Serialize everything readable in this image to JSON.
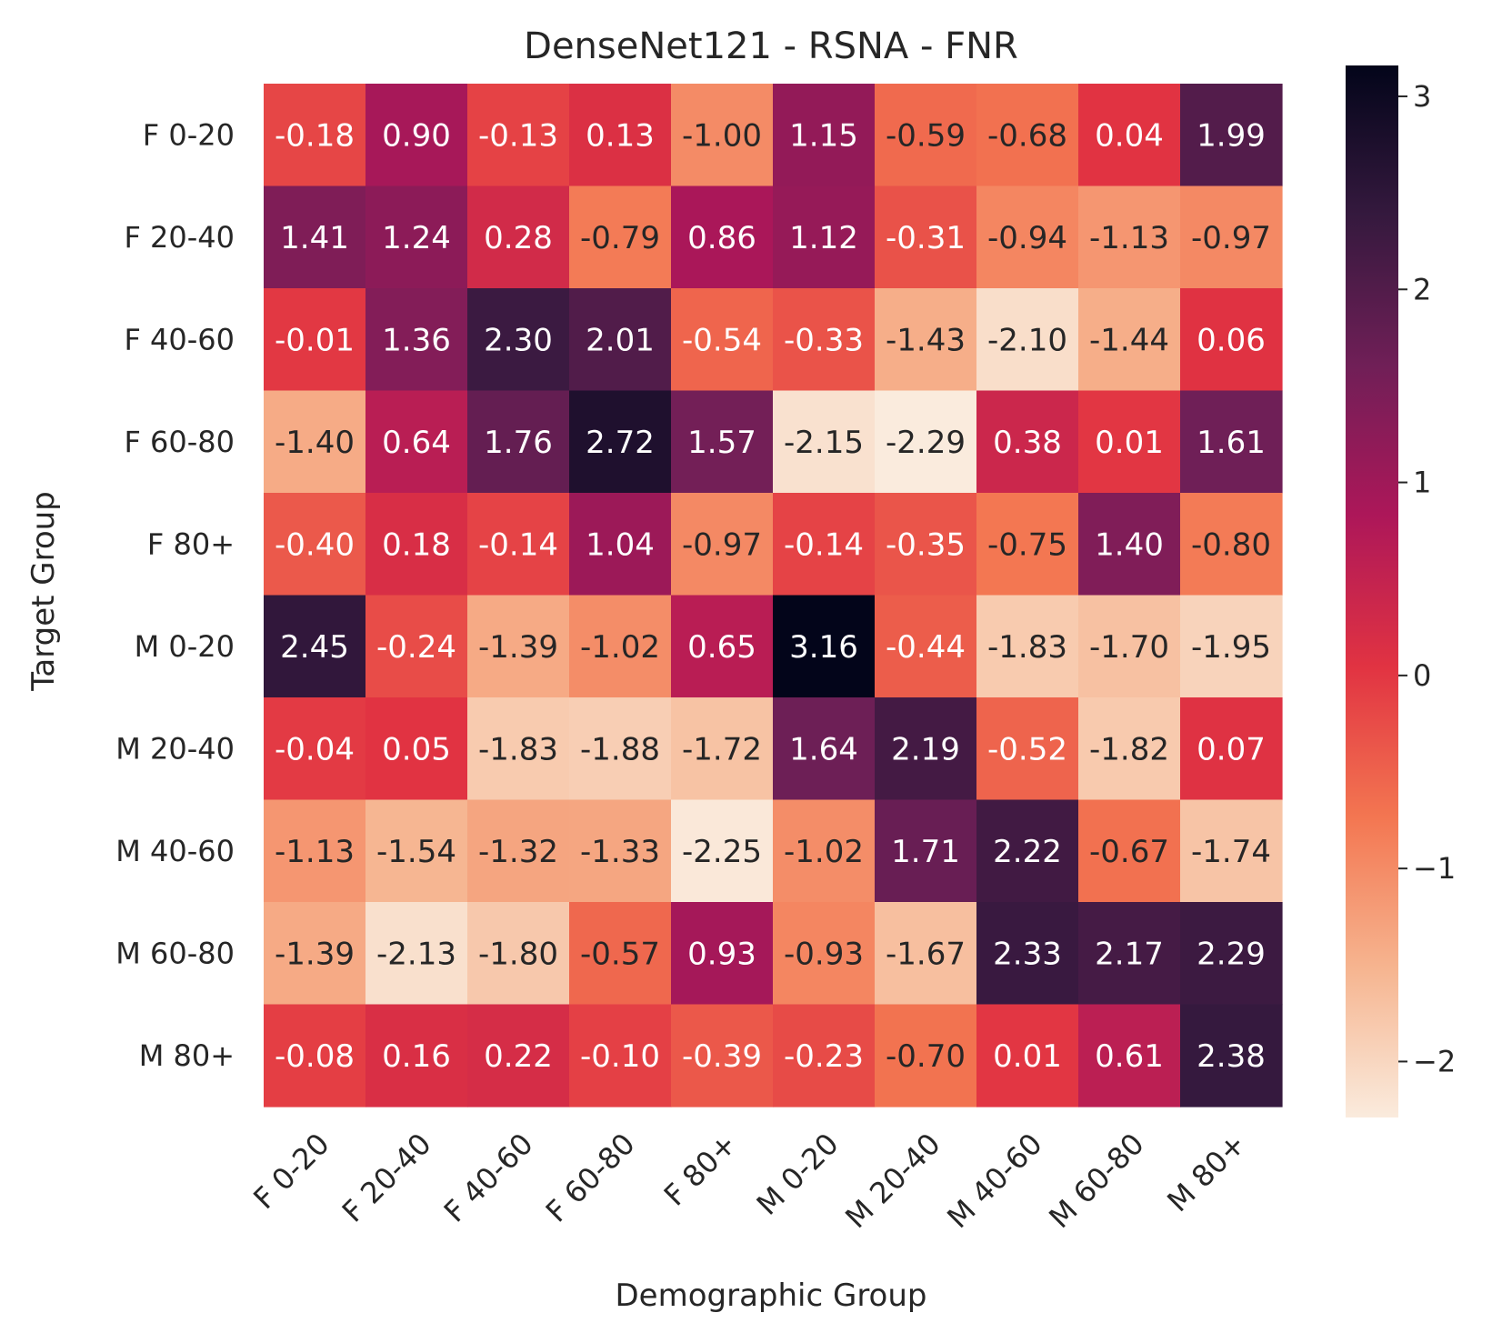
{
  "chart_data": {
    "type": "heatmap",
    "title": "DenseNet121 - RSNA - FNR",
    "xlabel": "Demographic Group",
    "ylabel": "Target Group",
    "x_categories": [
      "F 0-20",
      "F 20-40",
      "F 40-60",
      "F 60-80",
      "F 80+",
      "M 0-20",
      "M 20-40",
      "M 40-60",
      "M 60-80",
      "M 80+"
    ],
    "y_categories": [
      "F 0-20",
      "F 20-40",
      "F 40-60",
      "F 60-80",
      "F 80+",
      "M 0-20",
      "M 20-40",
      "M 40-60",
      "M 60-80",
      "M 80+"
    ],
    "values": [
      [
        -0.18,
        0.9,
        -0.13,
        0.13,
        -1.0,
        1.15,
        -0.59,
        -0.68,
        0.04,
        1.99
      ],
      [
        1.41,
        1.24,
        0.28,
        -0.79,
        0.86,
        1.12,
        -0.31,
        -0.94,
        -1.13,
        -0.97
      ],
      [
        -0.01,
        1.36,
        2.3,
        2.01,
        -0.54,
        -0.33,
        -1.43,
        -2.1,
        -1.44,
        0.06
      ],
      [
        -1.4,
        0.64,
        1.76,
        2.72,
        1.57,
        -2.15,
        -2.29,
        0.38,
        0.01,
        1.61
      ],
      [
        -0.4,
        0.18,
        -0.14,
        1.04,
        -0.97,
        -0.14,
        -0.35,
        -0.75,
        1.4,
        -0.8
      ],
      [
        2.45,
        -0.24,
        -1.39,
        -1.02,
        0.65,
        3.16,
        -0.44,
        -1.83,
        -1.7,
        -1.95
      ],
      [
        -0.04,
        0.05,
        -1.83,
        -1.88,
        -1.72,
        1.64,
        2.19,
        -0.52,
        -1.82,
        0.07
      ],
      [
        -1.13,
        -1.54,
        -1.32,
        -1.33,
        -2.25,
        -1.02,
        1.71,
        2.22,
        -0.67,
        -1.74
      ],
      [
        -1.39,
        -2.13,
        -1.8,
        -0.57,
        0.93,
        -0.93,
        -1.67,
        2.33,
        2.17,
        2.29
      ],
      [
        -0.08,
        0.16,
        0.22,
        -0.1,
        -0.39,
        -0.23,
        -0.7,
        0.01,
        0.61,
        2.38
      ]
    ],
    "value_format": "2 decimals",
    "colorbar": {
      "min": -2.29,
      "max": 3.16,
      "ticks": [
        3,
        2,
        1,
        0,
        -1,
        -2
      ],
      "tick_labels": [
        "3",
        "2",
        "1",
        "0",
        "−1",
        "−2"
      ],
      "colormap": "rocket_r",
      "stops": [
        "#faebdd",
        "#f6b48f",
        "#f37651",
        "#e13342",
        "#ad1759",
        "#701f57",
        "#35193e",
        "#03051a"
      ]
    },
    "grid": false,
    "legend": "colorbar right"
  }
}
